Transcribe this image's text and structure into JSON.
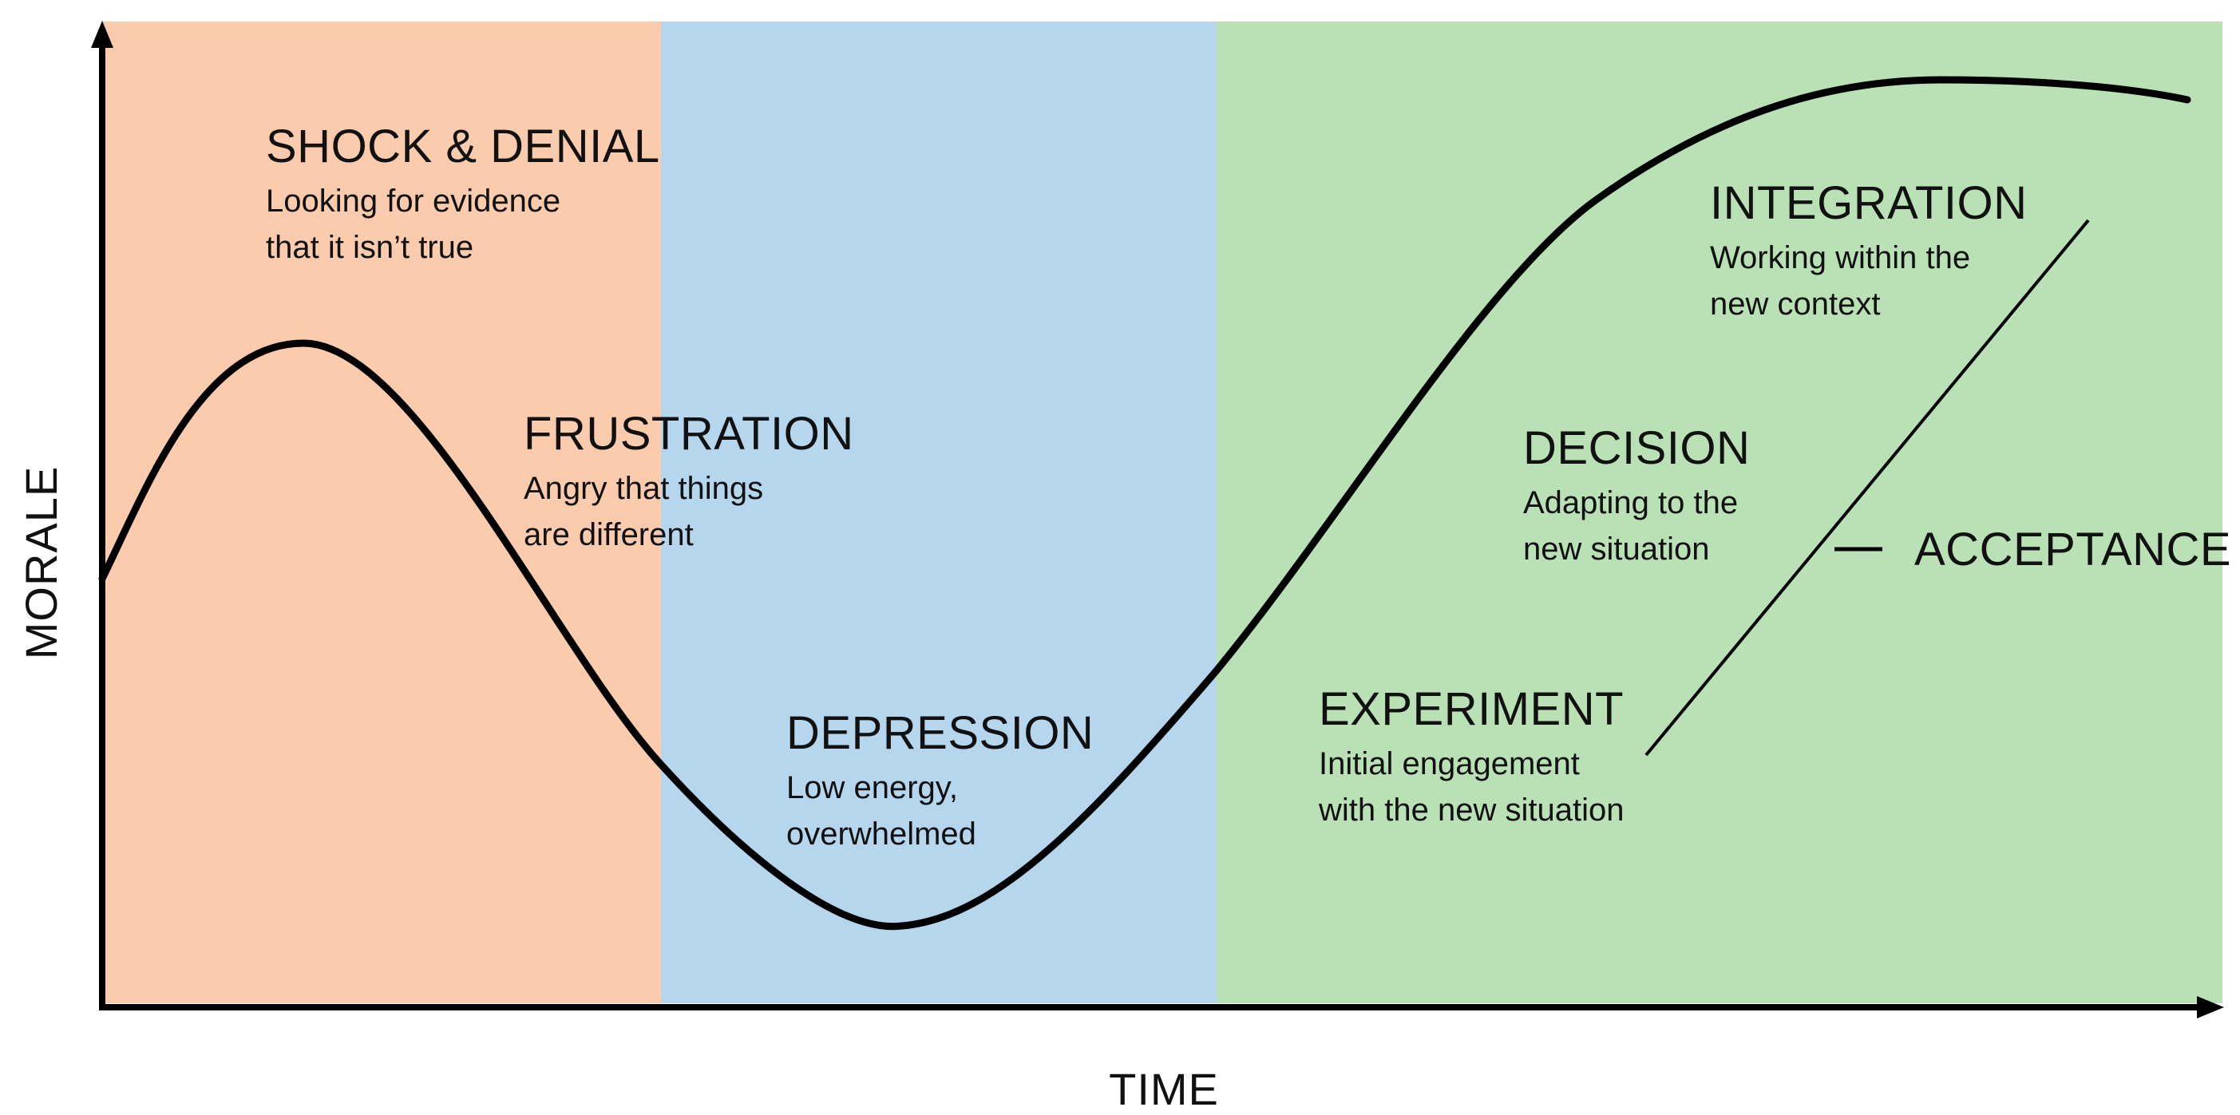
{
  "axes": {
    "y_label": "MORALE",
    "x_label": "TIME"
  },
  "zones": [
    {
      "name": "zone-1",
      "color": "#fbcbae"
    },
    {
      "name": "zone-2",
      "color": "#b6d6ee"
    },
    {
      "name": "zone-3",
      "color": "#b9e1b5"
    }
  ],
  "stages": {
    "shock_denial": {
      "title": "SHOCK & DENIAL",
      "desc": [
        "Looking for evidence",
        "that it isn’t true"
      ]
    },
    "frustration": {
      "title": "FRUSTRATION",
      "desc": [
        "Angry that things",
        "are different"
      ]
    },
    "depression": {
      "title": "DEPRESSION",
      "desc": [
        "Low energy,",
        "overwhelmed"
      ]
    },
    "experiment": {
      "title": "EXPERIMENT",
      "desc": [
        "Initial engagement",
        "with the new situation"
      ]
    },
    "decision": {
      "title": "DECISION",
      "desc": [
        "Adapting to the",
        "new situation"
      ]
    },
    "integration": {
      "title": "INTEGRATION",
      "desc": [
        "Working within the",
        "new context"
      ]
    }
  },
  "acceptance_label": "ACCEPTANCE",
  "colors": {
    "curve": "#000000",
    "axis": "#000000"
  }
}
